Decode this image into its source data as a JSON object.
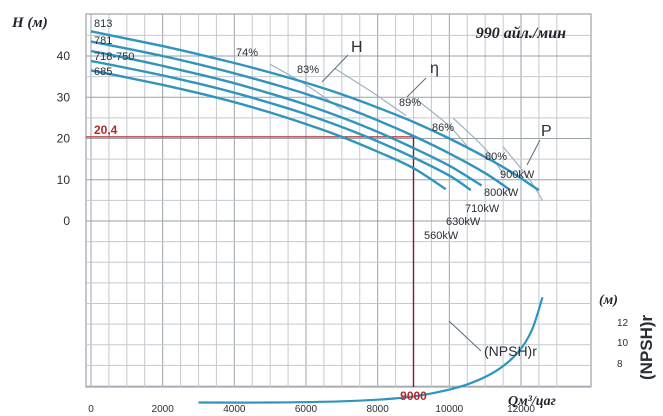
{
  "chart_data": {
    "type": "line",
    "title": "990 айл./мин",
    "ylabel": "H (м)",
    "xlabel": "Qм³/цаг",
    "y2label": "(NPSH)r",
    "y2unit": "(м)",
    "xlim": [
      0,
      13300
    ],
    "ylim": [
      -60,
      48
    ],
    "x_ticks": [
      0,
      2000,
      4000,
      6000,
      8000,
      10000,
      12000
    ],
    "y_ticks": [
      0,
      10,
      20,
      30,
      40
    ],
    "y2_ticks": [
      8,
      10,
      12
    ],
    "grid": true,
    "impeller_labels": [
      "813",
      "781",
      "718-750",
      "685"
    ],
    "head_curves": [
      {
        "x": [
          0,
          1000,
          2000,
          3000,
          4000,
          5000,
          6000,
          7000,
          8000,
          9000,
          10000,
          11000,
          11800,
          12300,
          12500
        ],
        "y": [
          46,
          44.2,
          42.4,
          40.4,
          38.3,
          36,
          33.5,
          30.7,
          27.5,
          24,
          20,
          15.5,
          11.5,
          8.6,
          7.5
        ]
      },
      {
        "x": [
          0,
          1000,
          2000,
          3000,
          4000,
          5000,
          6000,
          7000,
          8000,
          9000,
          10000,
          11000,
          11700
        ],
        "y": [
          43.5,
          41.8,
          40,
          38,
          35.8,
          33.4,
          30.8,
          27.8,
          24.4,
          20.6,
          16.4,
          11.6,
          7.5
        ]
      },
      {
        "x": [
          0,
          1000,
          2000,
          3000,
          4000,
          5000,
          6000,
          7000,
          8000,
          9000,
          10000,
          10900
        ],
        "y": [
          41.2,
          39.5,
          37.6,
          35.6,
          33.4,
          30.9,
          28.2,
          25.1,
          21.6,
          17.7,
          13.4,
          8.6
        ]
      },
      {
        "x": [
          0,
          1000,
          2000,
          3000,
          4000,
          5000,
          6000,
          7000,
          8000,
          9000,
          10000,
          10600
        ],
        "y": [
          38.8,
          37.1,
          35.3,
          33.3,
          31.1,
          28.6,
          25.9,
          22.8,
          19.3,
          15.4,
          11,
          7.5
        ]
      },
      {
        "x": [
          0,
          1000,
          2000,
          3000,
          4000,
          5000,
          6000,
          7000,
          8000,
          9000,
          9900
        ],
        "y": [
          36.5,
          34.8,
          33,
          31,
          28.8,
          26.3,
          23.5,
          20.4,
          16.8,
          12.8,
          7.7
        ]
      }
    ],
    "efficiency_curves": [
      {
        "label": "74%",
        "x": [
          5000,
          6000,
          7000
        ],
        "y": [
          38,
          33,
          27
        ]
      },
      {
        "label": "83%",
        "x": [
          6800,
          7800,
          8800
        ],
        "y": [
          37,
          31.5,
          25.5
        ]
      },
      {
        "label": "89%",
        "x": [
          9000,
          10000,
          10600
        ],
        "y": [
          30,
          23,
          17
        ]
      },
      {
        "label": "86%",
        "x": [
          10100,
          11000,
          11500
        ],
        "y": [
          25,
          17.5,
          11.5
        ]
      },
      {
        "label": "80%",
        "x": [
          11500,
          12200,
          12600
        ],
        "y": [
          18,
          10.5,
          5
        ]
      }
    ],
    "power_labels": [
      "900kW",
      "800kW",
      "710kW",
      "630kW",
      "560kW"
    ],
    "curve_labels": {
      "head": "H",
      "efficiency": "η",
      "power": "P"
    },
    "npsh_curve": {
      "x": [
        3000,
        5000,
        7000,
        8500,
        9500,
        10500,
        11300,
        11900,
        12300,
        12600
      ],
      "y": [
        -44,
        -44,
        -43.7,
        -43,
        -41.8,
        -39.6,
        -36.4,
        -32,
        -26.5,
        -18.5
      ]
    },
    "npsh_label": "(NPSH)r",
    "operating_point": {
      "q": 9000,
      "h": 20.4,
      "q_label": "9000",
      "h_label": "20,4"
    }
  }
}
